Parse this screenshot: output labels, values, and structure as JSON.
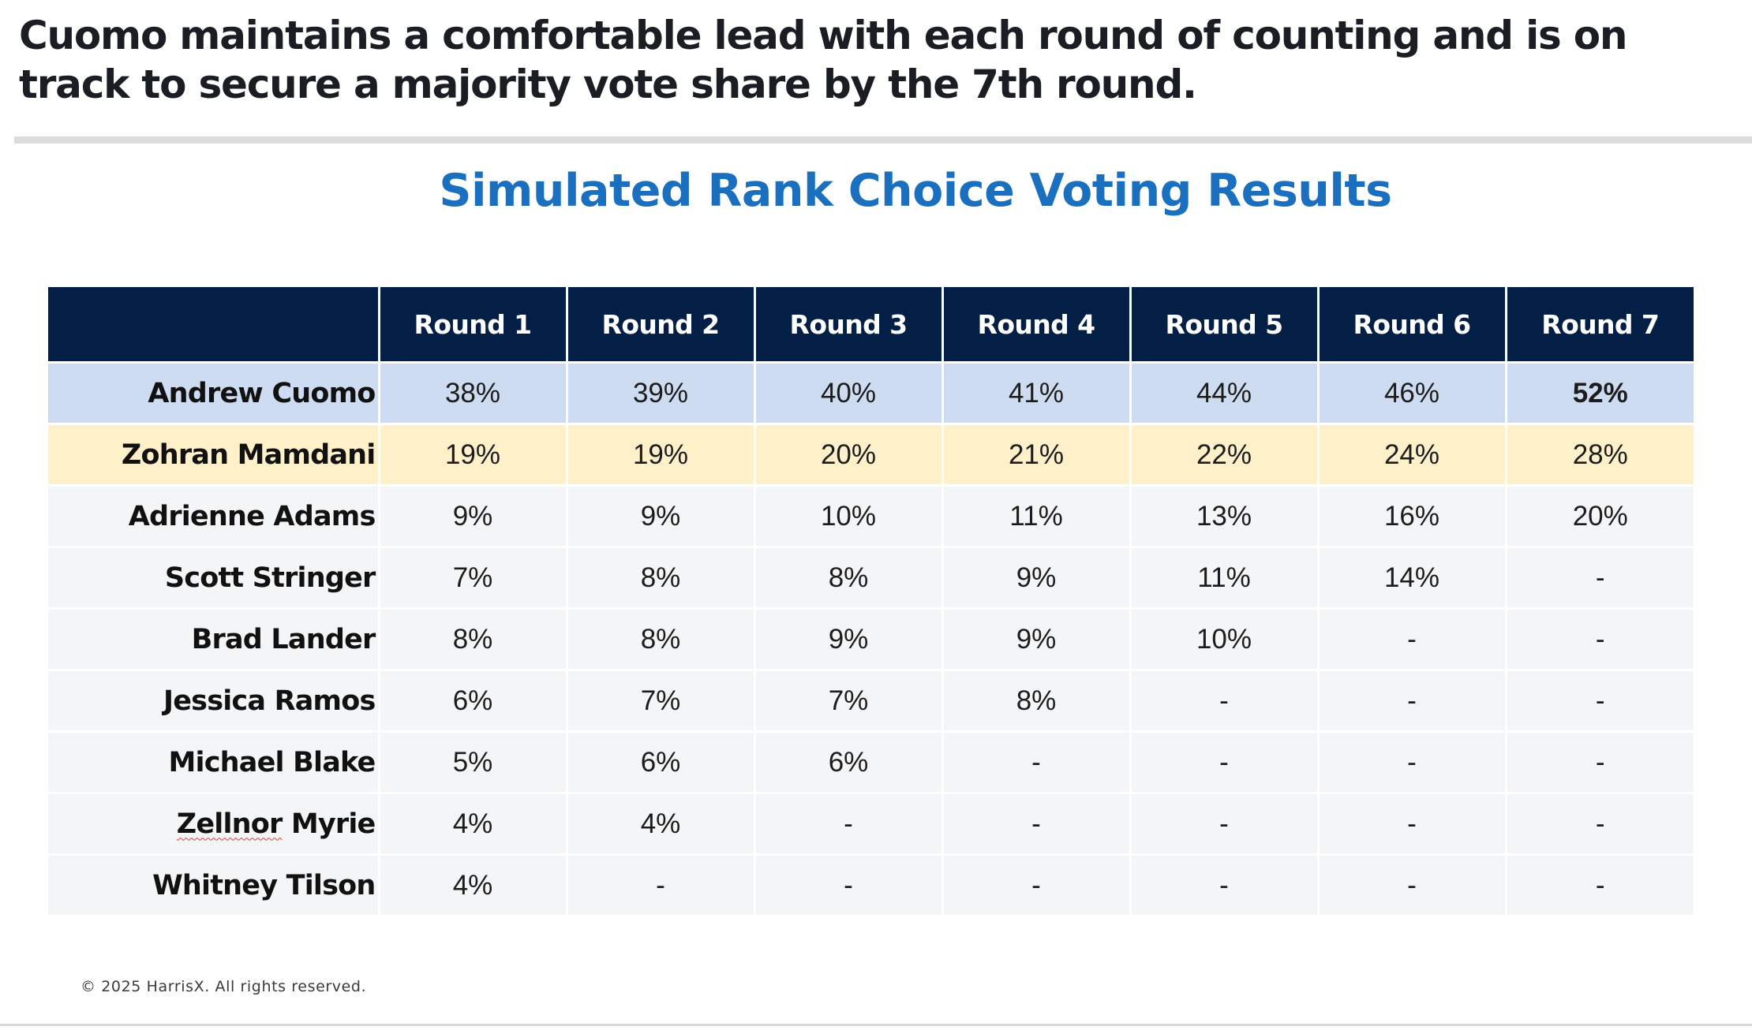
{
  "headline": "Cuomo maintains a comfortable lead with each round of counting and is on track to secure a majority vote share by the 7th round.",
  "colors": {
    "title_blue": "#1a6fbe",
    "header_navy": "#031f45",
    "leader_row": "#cddcf1",
    "runner_up_row": "#fef1c9",
    "other_rows": "#f4f5f7"
  },
  "chart_data": {
    "type": "table",
    "title": "Simulated Rank Choice Voting Results",
    "columns": [
      "Round 1",
      "Round 2",
      "Round 3",
      "Round 4",
      "Round 5",
      "Round 6",
      "Round 7"
    ],
    "rows": [
      {
        "name": "Andrew Cuomo",
        "values": [
          "38%",
          "39%",
          "40%",
          "41%",
          "44%",
          "46%",
          "52%"
        ],
        "highlight": "blue",
        "bold_last": true
      },
      {
        "name": "Zohran Mamdani",
        "values": [
          "19%",
          "19%",
          "20%",
          "21%",
          "22%",
          "24%",
          "28%"
        ],
        "highlight": "yellow"
      },
      {
        "name": "Adrienne Adams",
        "values": [
          "9%",
          "9%",
          "10%",
          "11%",
          "13%",
          "16%",
          "20%"
        ]
      },
      {
        "name": "Scott Stringer",
        "values": [
          "7%",
          "8%",
          "8%",
          "9%",
          "11%",
          "14%",
          "-"
        ]
      },
      {
        "name": "Brad Lander",
        "values": [
          "8%",
          "8%",
          "9%",
          "9%",
          "10%",
          "-",
          "-"
        ]
      },
      {
        "name": "Jessica Ramos",
        "values": [
          "6%",
          "7%",
          "7%",
          "8%",
          "-",
          "-",
          "-"
        ]
      },
      {
        "name": "Michael Blake",
        "values": [
          "5%",
          "6%",
          "6%",
          "-",
          "-",
          "-",
          "-"
        ]
      },
      {
        "name": "Zellnor Myrie",
        "name_parts": [
          "Zellnor",
          " Myrie"
        ],
        "values": [
          "4%",
          "4%",
          "-",
          "-",
          "-",
          "-",
          "-"
        ]
      },
      {
        "name": "Whitney Tilson",
        "values": [
          "4%",
          "-",
          "-",
          "-",
          "-",
          "-",
          "-"
        ]
      }
    ]
  },
  "footer": {
    "copyright": "© 2025 HarrisX. All rights reserved."
  }
}
